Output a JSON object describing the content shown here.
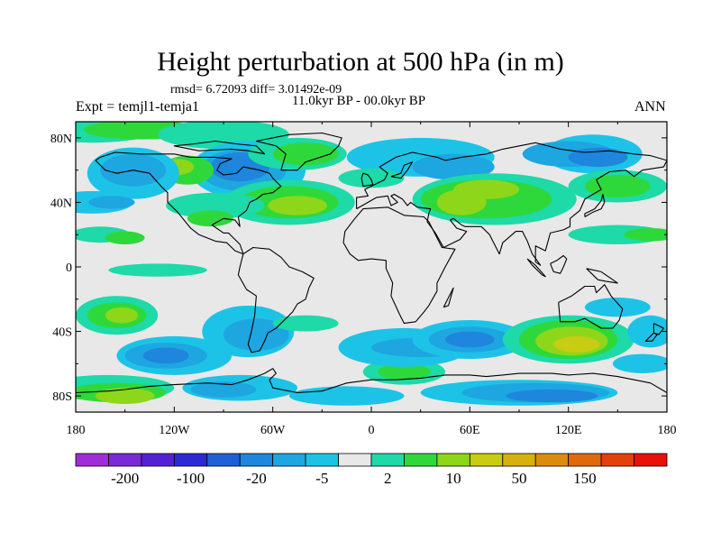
{
  "title": "Height perturbation at 500 hPa (in m)",
  "stats": "rmsd= 6.72093 diff= 3.01492e-09",
  "period": "11.0kyr BP - 00.0kyr BP",
  "experiment": "Expt = temjl1-temja1",
  "season": "ANN",
  "lat_labels": [
    "80N",
    "40N",
    "0",
    "40S",
    "80S"
  ],
  "lon_labels": [
    "180",
    "120W",
    "60W",
    "0",
    "60E",
    "120E",
    "180"
  ],
  "colorbar": {
    "colors": [
      "#a12bd8",
      "#7b28d8",
      "#5520d4",
      "#2a2ad4",
      "#1f5fd8",
      "#1e86dc",
      "#1ea6e0",
      "#1dc3e6",
      "#e8e8e8",
      "#1ed9a8",
      "#2fd83a",
      "#8ed61a",
      "#c8cc12",
      "#d6b00e",
      "#dc8c0c",
      "#e06a0a",
      "#e4400a",
      "#e81008"
    ],
    "labels": [
      "-200",
      "-100",
      "-20",
      "-5",
      "2",
      "10",
      "50",
      "150"
    ]
  },
  "field_colors": {
    "neutral": "#e8e8e8",
    "pos1": "#1ed9a8",
    "pos2": "#2fd83a",
    "pos3": "#8ed61a",
    "pos4": "#c8cc12",
    "pos5": "#d6b00e",
    "neg1": "#1dc3e6",
    "neg2": "#1ea6e0",
    "neg3": "#1e86dc",
    "neg4": "#1f5fd8"
  }
}
